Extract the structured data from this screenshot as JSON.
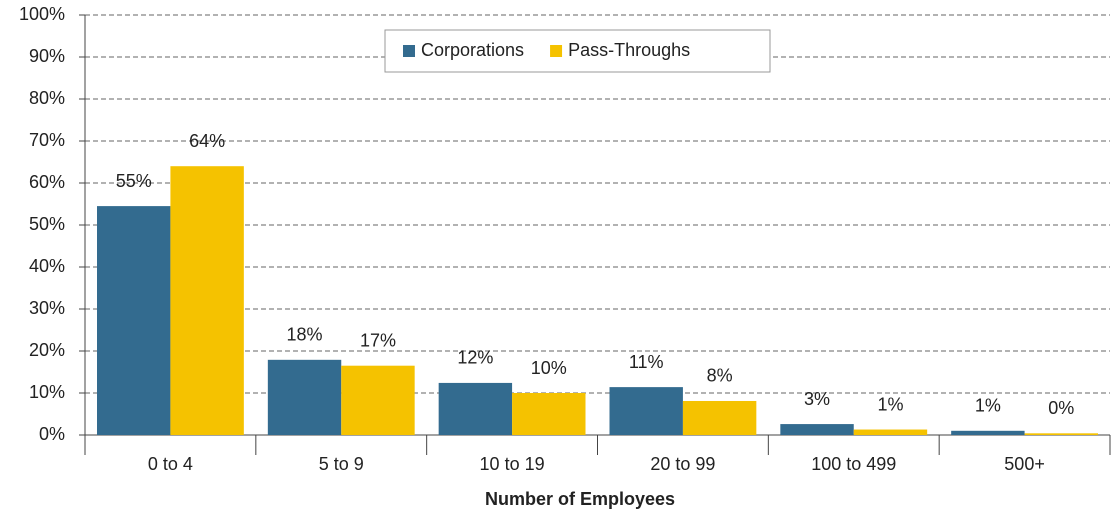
{
  "chart_data": {
    "type": "bar",
    "x_label": "Number of Employees",
    "categories": [
      "0 to 4",
      "5 to 9",
      "10 to 19",
      "20 to 99",
      "100 to 499",
      "500+"
    ],
    "series": [
      {
        "name": "Corporations",
        "color": "#336b8f",
        "values": [
          54.5,
          17.9,
          12.4,
          11.4,
          2.6,
          1.0
        ],
        "value_labels": [
          "55%",
          "18%",
          "12%",
          "11%",
          "3%",
          "1%"
        ]
      },
      {
        "name": "Pass-Throughs",
        "color": "#f5c200",
        "values": [
          64.0,
          16.5,
          10.0,
          8.1,
          1.3,
          0.4
        ],
        "value_labels": [
          "64%",
          "17%",
          "10%",
          "8%",
          "1%",
          "0%"
        ]
      }
    ],
    "ylim": [
      0,
      100
    ],
    "yticks": [
      {
        "value": 0,
        "label": "0%"
      },
      {
        "value": 10,
        "label": "10%"
      },
      {
        "value": 20,
        "label": "20%"
      },
      {
        "value": 30,
        "label": "30%"
      },
      {
        "value": 40,
        "label": "40%"
      },
      {
        "value": 50,
        "label": "50%"
      },
      {
        "value": 60,
        "label": "60%"
      },
      {
        "value": 70,
        "label": "70%"
      },
      {
        "value": 80,
        "label": "80%"
      },
      {
        "value": 90,
        "label": "90%"
      },
      {
        "value": 100,
        "label": "100%"
      }
    ],
    "grid": true,
    "legend": "top"
  }
}
